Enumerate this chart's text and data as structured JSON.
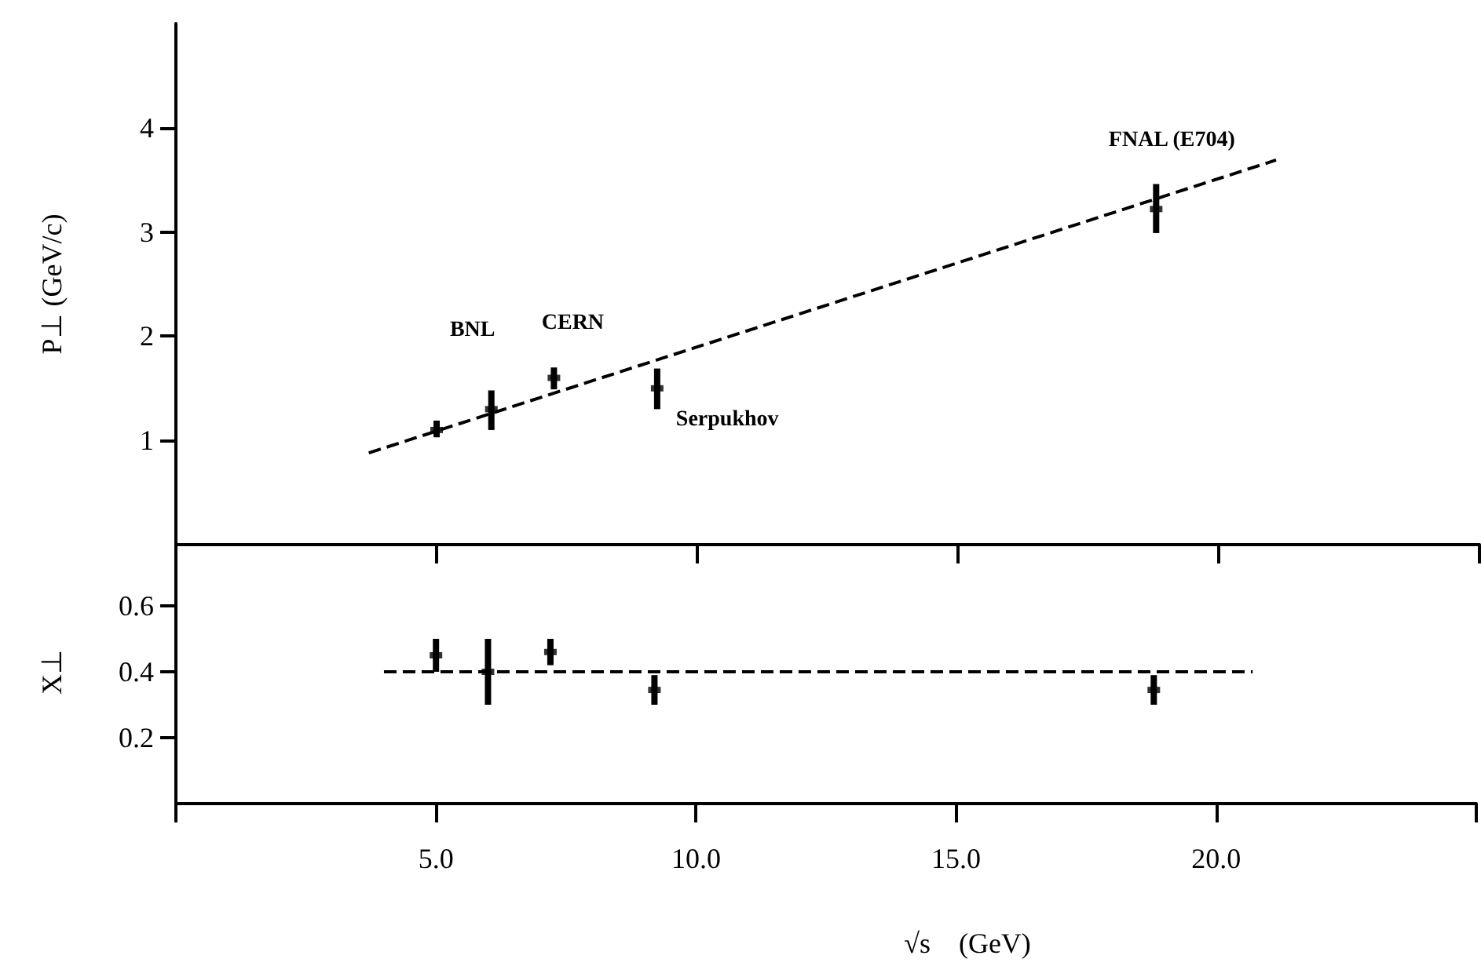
{
  "chart_data": [
    {
      "type": "scatter",
      "ylabel": "P⊥ (GeV/c)",
      "tick_labels": "y",
      "xlim": [
        0,
        25
      ],
      "xticks": [
        0,
        5,
        10,
        15,
        20,
        25
      ],
      "ylim": [
        0,
        5
      ],
      "yticks": [
        1,
        2,
        3,
        4
      ],
      "series": [
        {
          "color": "#000000",
          "marker": "square",
          "x": [
            5.0,
            6.05,
            7.25,
            9.23,
            18.8
          ],
          "values": [
            1.1,
            1.3,
            1.6,
            1.5,
            3.22
          ],
          "errors": [
            [
              1.03,
              1.19
            ],
            [
              1.1,
              1.48
            ],
            [
              1.49,
              1.7
            ],
            [
              1.3,
              1.69
            ],
            [
              2.99,
              3.46
            ]
          ]
        },
        {
          "type": "line",
          "color": "#000000",
          "line_style": "dashed",
          "x": [
            3.7,
            21.1
          ],
          "values": [
            0.88,
            3.69
          ]
        }
      ],
      "annotations": [
        {
          "text": "BNL",
          "x": 6.05,
          "y": 1.48
        },
        {
          "text": "CERN",
          "x": 7.25,
          "y": 1.7
        },
        {
          "text": "Serpukhov",
          "x": 9.23,
          "y": 1.5
        },
        {
          "text": "FNAL (E704)",
          "x": 18.8,
          "y": 3.46
        }
      ]
    },
    {
      "type": "scatter",
      "ylabel": "X⊥",
      "xlabel": "√s    (GeV)",
      "xlim": [
        0,
        25
      ],
      "xticks": [
        {
          "value": 0,
          "label": null
        },
        {
          "value": 5,
          "label": "5.0"
        },
        {
          "value": 10,
          "label": "10.0"
        },
        {
          "value": 15,
          "label": "15.0"
        },
        {
          "value": 20,
          "label": "20.0"
        },
        {
          "value": 25,
          "label": null
        }
      ],
      "ylim": [
        0,
        0.8
      ],
      "yticks": [
        0.2,
        0.4,
        0.6
      ],
      "series": [
        {
          "color": "#000000",
          "marker": "square",
          "x": [
            5.0,
            6.0,
            7.2,
            9.2,
            18.8
          ],
          "values": [
            0.45,
            0.4,
            0.46,
            0.345,
            0.345
          ],
          "errors": [
            [
              0.4,
              0.5
            ],
            [
              0.3,
              0.5
            ],
            [
              0.42,
              0.5
            ],
            [
              0.3,
              0.39
            ],
            [
              0.3,
              0.39
            ]
          ]
        },
        {
          "type": "line",
          "color": "#000000",
          "line_style": "dashed",
          "x": [
            4.0,
            20.7
          ],
          "values": [
            0.4,
            0.4
          ]
        }
      ]
    }
  ]
}
